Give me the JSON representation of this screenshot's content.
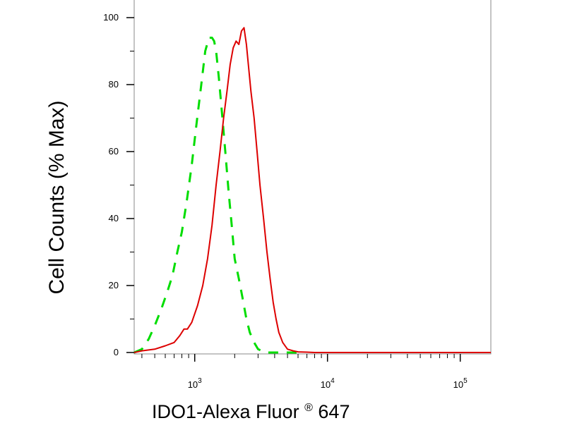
{
  "chart_data": {
    "type": "line",
    "title": "",
    "xlabel": "IDO1-Alexa Fluor",
    "xlabel_mark": "®",
    "xlabel_suffix": " 647",
    "ylabel": "Cell Counts (% Max)",
    "x_scale": "log",
    "xlim": [
      350,
      170000
    ],
    "ylim": [
      0,
      100
    ],
    "x_ticks": [
      {
        "value": 1000,
        "base": "10",
        "exp": "3"
      },
      {
        "value": 10000,
        "base": "10",
        "exp": "4"
      },
      {
        "value": 100000,
        "base": "10",
        "exp": "5"
      }
    ],
    "y_ticks": [
      0,
      20,
      40,
      60,
      80,
      100
    ],
    "grid": false,
    "legend": "none",
    "series": [
      {
        "color": "#00dd00",
        "style": "dashed",
        "x": [
          350,
          400,
          450,
          500,
          560,
          620,
          680,
          740,
          800,
          870,
          950,
          1030,
          1120,
          1200,
          1280,
          1350,
          1400,
          1450,
          1520,
          1600,
          1700,
          1800,
          1900,
          2000,
          2150,
          2300,
          2450,
          2600,
          2800,
          3000,
          3200,
          3400,
          3600,
          3800,
          4000,
          4300,
          4600,
          5000,
          6000
        ],
        "y": [
          0,
          1,
          4,
          8,
          13,
          18,
          23,
          30,
          36,
          45,
          56,
          68,
          80,
          90,
          94,
          94,
          93,
          90,
          82,
          72,
          60,
          48,
          38,
          28,
          22,
          16,
          10,
          6,
          3,
          1,
          0.5,
          0,
          0,
          0,
          0,
          0,
          0,
          0,
          0
        ]
      },
      {
        "color": "#dd0000",
        "style": "solid",
        "x": [
          350,
          400,
          500,
          600,
          700,
          770,
          830,
          880,
          950,
          1050,
          1150,
          1250,
          1350,
          1450,
          1550,
          1650,
          1750,
          1850,
          1950,
          2050,
          2150,
          2250,
          2350,
          2450,
          2550,
          2650,
          2800,
          2950,
          3100,
          3300,
          3500,
          3700,
          3900,
          4100,
          4300,
          4600,
          5000,
          5500,
          6000,
          7000,
          8000,
          10000,
          20000,
          50000,
          100000,
          170000
        ],
        "y": [
          0,
          0.5,
          1,
          2,
          3,
          5,
          7,
          7,
          9,
          14,
          20,
          28,
          38,
          50,
          60,
          70,
          78,
          86,
          91,
          93,
          92,
          96,
          97,
          92,
          85,
          78,
          70,
          60,
          50,
          40,
          30,
          22,
          15,
          10,
          6,
          3,
          1,
          0.5,
          0.2,
          0.1,
          0,
          0,
          0,
          0,
          0,
          0
        ]
      }
    ]
  }
}
